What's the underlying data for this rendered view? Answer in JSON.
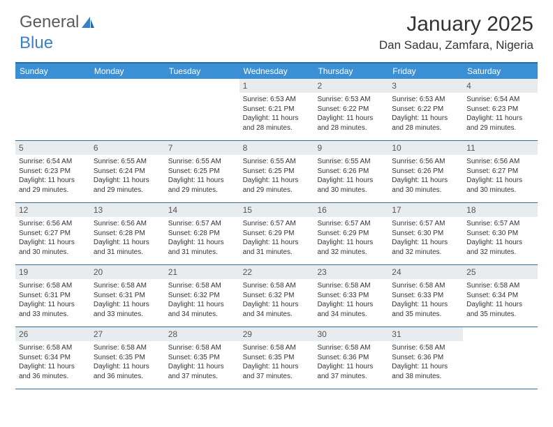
{
  "brand": {
    "part1": "General",
    "part2": "Blue"
  },
  "title": "January 2025",
  "location": "Dan Sadau, Zamfara, Nigeria",
  "colors": {
    "header_bar": "#3b8fd4",
    "border": "#2b6ca3",
    "daynum_bg": "#e9ecef",
    "text": "#333333",
    "brand_gray": "#5a5a5a",
    "brand_blue": "#3b7fc4"
  },
  "days_of_week": [
    "Sunday",
    "Monday",
    "Tuesday",
    "Wednesday",
    "Thursday",
    "Friday",
    "Saturday"
  ],
  "weeks": [
    [
      null,
      null,
      null,
      {
        "n": "1",
        "sunrise": "Sunrise: 6:53 AM",
        "sunset": "Sunset: 6:21 PM",
        "day1": "Daylight: 11 hours",
        "day2": "and 28 minutes."
      },
      {
        "n": "2",
        "sunrise": "Sunrise: 6:53 AM",
        "sunset": "Sunset: 6:22 PM",
        "day1": "Daylight: 11 hours",
        "day2": "and 28 minutes."
      },
      {
        "n": "3",
        "sunrise": "Sunrise: 6:53 AM",
        "sunset": "Sunset: 6:22 PM",
        "day1": "Daylight: 11 hours",
        "day2": "and 28 minutes."
      },
      {
        "n": "4",
        "sunrise": "Sunrise: 6:54 AM",
        "sunset": "Sunset: 6:23 PM",
        "day1": "Daylight: 11 hours",
        "day2": "and 29 minutes."
      }
    ],
    [
      {
        "n": "5",
        "sunrise": "Sunrise: 6:54 AM",
        "sunset": "Sunset: 6:23 PM",
        "day1": "Daylight: 11 hours",
        "day2": "and 29 minutes."
      },
      {
        "n": "6",
        "sunrise": "Sunrise: 6:55 AM",
        "sunset": "Sunset: 6:24 PM",
        "day1": "Daylight: 11 hours",
        "day2": "and 29 minutes."
      },
      {
        "n": "7",
        "sunrise": "Sunrise: 6:55 AM",
        "sunset": "Sunset: 6:25 PM",
        "day1": "Daylight: 11 hours",
        "day2": "and 29 minutes."
      },
      {
        "n": "8",
        "sunrise": "Sunrise: 6:55 AM",
        "sunset": "Sunset: 6:25 PM",
        "day1": "Daylight: 11 hours",
        "day2": "and 29 minutes."
      },
      {
        "n": "9",
        "sunrise": "Sunrise: 6:55 AM",
        "sunset": "Sunset: 6:26 PM",
        "day1": "Daylight: 11 hours",
        "day2": "and 30 minutes."
      },
      {
        "n": "10",
        "sunrise": "Sunrise: 6:56 AM",
        "sunset": "Sunset: 6:26 PM",
        "day1": "Daylight: 11 hours",
        "day2": "and 30 minutes."
      },
      {
        "n": "11",
        "sunrise": "Sunrise: 6:56 AM",
        "sunset": "Sunset: 6:27 PM",
        "day1": "Daylight: 11 hours",
        "day2": "and 30 minutes."
      }
    ],
    [
      {
        "n": "12",
        "sunrise": "Sunrise: 6:56 AM",
        "sunset": "Sunset: 6:27 PM",
        "day1": "Daylight: 11 hours",
        "day2": "and 30 minutes."
      },
      {
        "n": "13",
        "sunrise": "Sunrise: 6:56 AM",
        "sunset": "Sunset: 6:28 PM",
        "day1": "Daylight: 11 hours",
        "day2": "and 31 minutes."
      },
      {
        "n": "14",
        "sunrise": "Sunrise: 6:57 AM",
        "sunset": "Sunset: 6:28 PM",
        "day1": "Daylight: 11 hours",
        "day2": "and 31 minutes."
      },
      {
        "n": "15",
        "sunrise": "Sunrise: 6:57 AM",
        "sunset": "Sunset: 6:29 PM",
        "day1": "Daylight: 11 hours",
        "day2": "and 31 minutes."
      },
      {
        "n": "16",
        "sunrise": "Sunrise: 6:57 AM",
        "sunset": "Sunset: 6:29 PM",
        "day1": "Daylight: 11 hours",
        "day2": "and 32 minutes."
      },
      {
        "n": "17",
        "sunrise": "Sunrise: 6:57 AM",
        "sunset": "Sunset: 6:30 PM",
        "day1": "Daylight: 11 hours",
        "day2": "and 32 minutes."
      },
      {
        "n": "18",
        "sunrise": "Sunrise: 6:57 AM",
        "sunset": "Sunset: 6:30 PM",
        "day1": "Daylight: 11 hours",
        "day2": "and 32 minutes."
      }
    ],
    [
      {
        "n": "19",
        "sunrise": "Sunrise: 6:58 AM",
        "sunset": "Sunset: 6:31 PM",
        "day1": "Daylight: 11 hours",
        "day2": "and 33 minutes."
      },
      {
        "n": "20",
        "sunrise": "Sunrise: 6:58 AM",
        "sunset": "Sunset: 6:31 PM",
        "day1": "Daylight: 11 hours",
        "day2": "and 33 minutes."
      },
      {
        "n": "21",
        "sunrise": "Sunrise: 6:58 AM",
        "sunset": "Sunset: 6:32 PM",
        "day1": "Daylight: 11 hours",
        "day2": "and 34 minutes."
      },
      {
        "n": "22",
        "sunrise": "Sunrise: 6:58 AM",
        "sunset": "Sunset: 6:32 PM",
        "day1": "Daylight: 11 hours",
        "day2": "and 34 minutes."
      },
      {
        "n": "23",
        "sunrise": "Sunrise: 6:58 AM",
        "sunset": "Sunset: 6:33 PM",
        "day1": "Daylight: 11 hours",
        "day2": "and 34 minutes."
      },
      {
        "n": "24",
        "sunrise": "Sunrise: 6:58 AM",
        "sunset": "Sunset: 6:33 PM",
        "day1": "Daylight: 11 hours",
        "day2": "and 35 minutes."
      },
      {
        "n": "25",
        "sunrise": "Sunrise: 6:58 AM",
        "sunset": "Sunset: 6:34 PM",
        "day1": "Daylight: 11 hours",
        "day2": "and 35 minutes."
      }
    ],
    [
      {
        "n": "26",
        "sunrise": "Sunrise: 6:58 AM",
        "sunset": "Sunset: 6:34 PM",
        "day1": "Daylight: 11 hours",
        "day2": "and 36 minutes."
      },
      {
        "n": "27",
        "sunrise": "Sunrise: 6:58 AM",
        "sunset": "Sunset: 6:35 PM",
        "day1": "Daylight: 11 hours",
        "day2": "and 36 minutes."
      },
      {
        "n": "28",
        "sunrise": "Sunrise: 6:58 AM",
        "sunset": "Sunset: 6:35 PM",
        "day1": "Daylight: 11 hours",
        "day2": "and 37 minutes."
      },
      {
        "n": "29",
        "sunrise": "Sunrise: 6:58 AM",
        "sunset": "Sunset: 6:35 PM",
        "day1": "Daylight: 11 hours",
        "day2": "and 37 minutes."
      },
      {
        "n": "30",
        "sunrise": "Sunrise: 6:58 AM",
        "sunset": "Sunset: 6:36 PM",
        "day1": "Daylight: 11 hours",
        "day2": "and 37 minutes."
      },
      {
        "n": "31",
        "sunrise": "Sunrise: 6:58 AM",
        "sunset": "Sunset: 6:36 PM",
        "day1": "Daylight: 11 hours",
        "day2": "and 38 minutes."
      },
      null
    ]
  ]
}
